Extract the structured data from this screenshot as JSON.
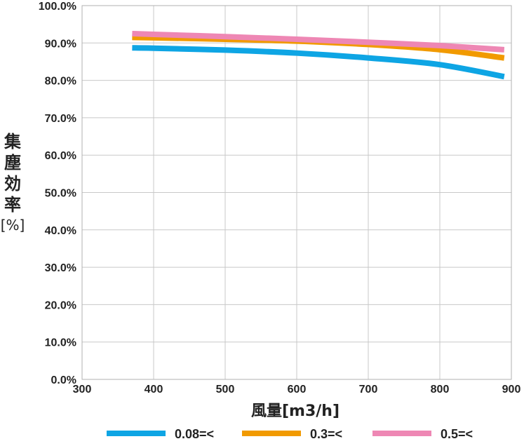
{
  "chart_data": {
    "type": "line",
    "title": "",
    "ylabel_lines": [
      "集",
      "塵",
      "効",
      "率",
      "[%]"
    ],
    "xlabel": "風量[m3/h]",
    "xlim": [
      300,
      900
    ],
    "ylim": [
      0,
      100
    ],
    "x_ticks": [
      "300",
      "400",
      "500",
      "600",
      "700",
      "800",
      "900"
    ],
    "y_ticks": [
      "0.0%",
      "10.0%",
      "20.0%",
      "30.0%",
      "40.0%",
      "50.0%",
      "60.0%",
      "70.0%",
      "80.0%",
      "90.0%",
      "100.0%"
    ],
    "grid": true,
    "legend_position": "bottom",
    "series": [
      {
        "name": "0.08=<",
        "color": "#0ea5e4",
        "x": [
          370,
          400,
          500,
          600,
          700,
          800,
          890
        ],
        "y": [
          88.7,
          88.6,
          88.1,
          87.3,
          86.0,
          84.2,
          81.0
        ]
      },
      {
        "name": "0.3=<",
        "color": "#f19a00",
        "x": [
          370,
          400,
          500,
          600,
          700,
          800,
          890
        ],
        "y": [
          91.5,
          91.4,
          91.0,
          90.5,
          89.6,
          88.2,
          86.0
        ]
      },
      {
        "name": "0.5=<",
        "color": "#ee87b4",
        "x": [
          370,
          400,
          500,
          600,
          700,
          800,
          890
        ],
        "y": [
          92.5,
          92.3,
          91.7,
          91.0,
          90.2,
          89.3,
          88.2
        ]
      }
    ]
  }
}
